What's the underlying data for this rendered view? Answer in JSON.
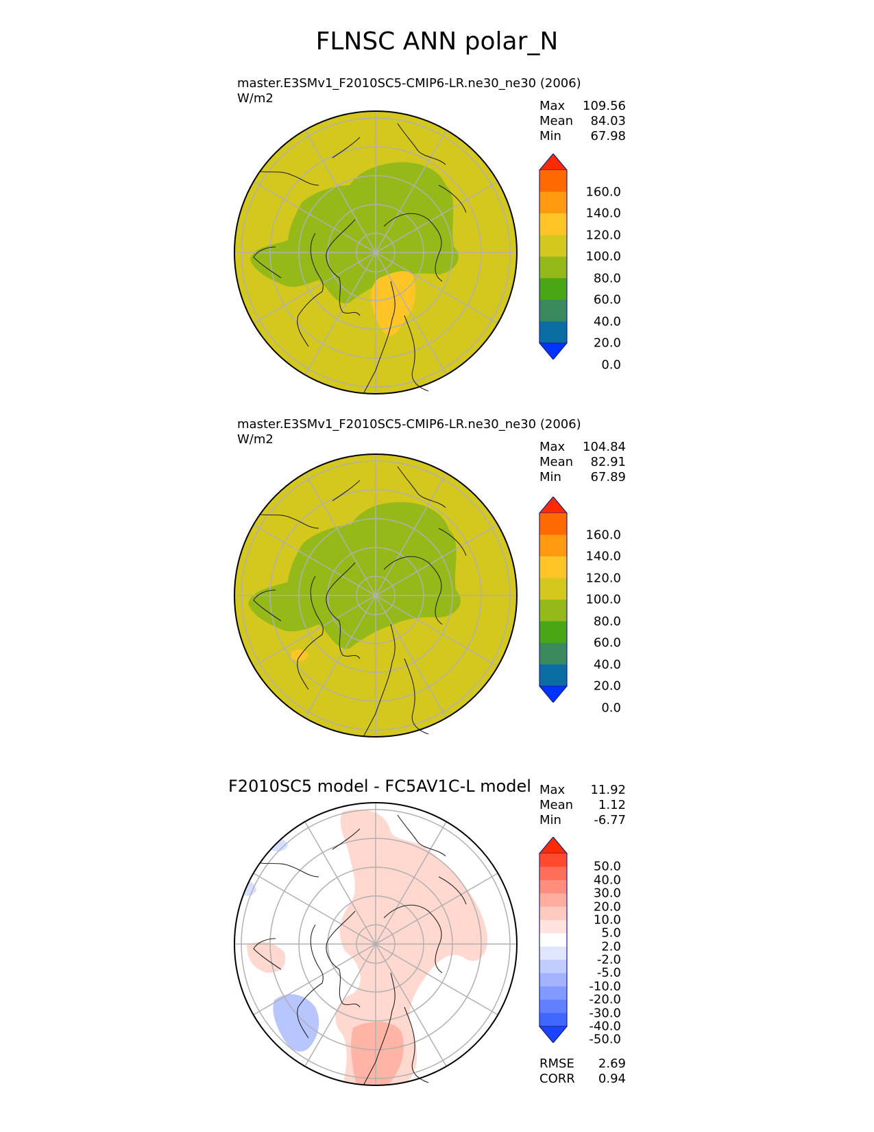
{
  "title": "FLNSC ANN polar_N",
  "panels": [
    {
      "kind": "test",
      "title": "master.E3SMv1_F2010SC5-CMIP6-LR.ne30_ne30 (2006)",
      "units": "W/m2",
      "stats": [
        {
          "label": "Max",
          "value": "109.56"
        },
        {
          "label": "Mean",
          "value": "84.03"
        },
        {
          "label": "Min",
          "value": "67.98"
        }
      ]
    },
    {
      "kind": "ref",
      "title": "master.E3SMv1_F2010SC5-CMIP6-LR.ne30_ne30 (2006)",
      "units": "W/m2",
      "stats": [
        {
          "label": "Max",
          "value": "104.84"
        },
        {
          "label": "Mean",
          "value": "82.91"
        },
        {
          "label": "Min",
          "value": "67.89"
        }
      ]
    },
    {
      "kind": "diff",
      "title": "F2010SC5 model - FC5AV1C-L model",
      "stats": [
        {
          "label": "Max",
          "value": "11.92"
        },
        {
          "label": "Mean",
          "value": "1.12"
        },
        {
          "label": "Min",
          "value": "-6.77"
        }
      ],
      "metrics": [
        {
          "label": "RMSE",
          "value": "2.69"
        },
        {
          "label": "CORR",
          "value": "0.94"
        }
      ]
    }
  ],
  "colorbars": {
    "main": {
      "labels": [
        "160.0",
        "140.0",
        "120.0",
        "100.0",
        "80.0",
        "60.0",
        "40.0",
        "20.0",
        "0.0"
      ],
      "colors_top_to_bottom": [
        "#ff2a00",
        "#ff6a00",
        "#ff9a10",
        "#ffc527",
        "#d4c81f",
        "#96b91a",
        "#4aa614",
        "#3a8a5e",
        "#0a6ea2",
        "#0033ff"
      ]
    },
    "diff": {
      "labels": [
        "50.0",
        "40.0",
        "30.0",
        "20.0",
        "10.0",
        "5.0",
        "2.0",
        "-2.0",
        "-5.0",
        "-10.0",
        "-20.0",
        "-30.0",
        "-40.0",
        "-50.0"
      ],
      "colors_top_to_bottom": [
        "#ff2a00",
        "#ff4a30",
        "#ff6e58",
        "#ff8f7c",
        "#ffad9e",
        "#ffcbc0",
        "#ffe4de",
        "#ffffff",
        "#e0e6ff",
        "#c2cdff",
        "#a3b3ff",
        "#8299ff",
        "#6080ff",
        "#3f66ff",
        "#1a44ff"
      ]
    },
    "ranges": {
      "main": [
        0,
        160
      ],
      "diff": [
        -50,
        50
      ]
    },
    "extend": "both"
  }
}
